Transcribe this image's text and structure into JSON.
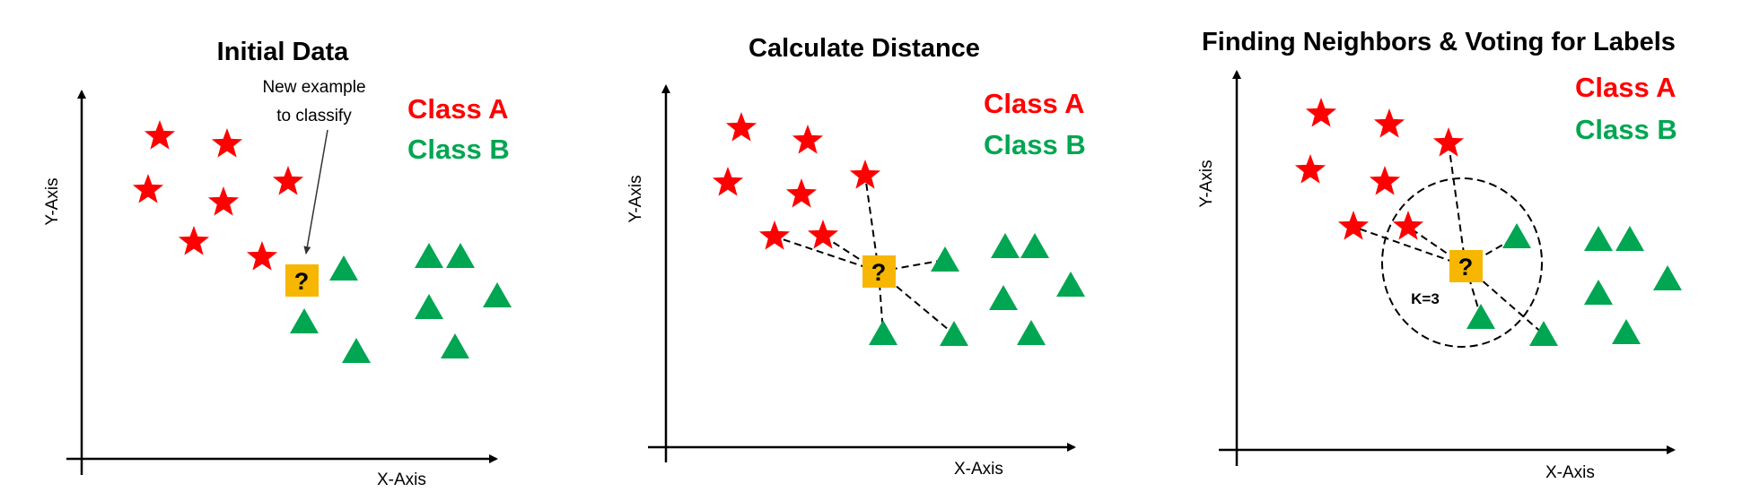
{
  "colors": {
    "class_a": "#ff0000",
    "class_b": "#00a651",
    "query": "#f7b600",
    "axis": "#000000"
  },
  "icons": {
    "class_a_marker": "red-star-icon",
    "class_b_marker": "green-triangle-icon",
    "query_marker": "question-mark-box-icon"
  },
  "legend": {
    "class_a": "Class A",
    "class_b": "Class B"
  },
  "query_symbol": "?",
  "panels": [
    {
      "id": "initial-data",
      "title": "Initial Data",
      "x_axis": "X-Axis",
      "y_axis": "Y-Axis",
      "annotation": [
        "New example",
        "to classify"
      ]
    },
    {
      "id": "calculate-distance",
      "title": "Calculate Distance",
      "x_axis": "X-Axis",
      "y_axis": "Y-Axis"
    },
    {
      "id": "finding-neighbors",
      "title": "Finding Neighbors & Voting for Labels",
      "x_axis": "X-Axis",
      "y_axis": "Y-Axis",
      "k_label": "K=3"
    }
  ]
}
